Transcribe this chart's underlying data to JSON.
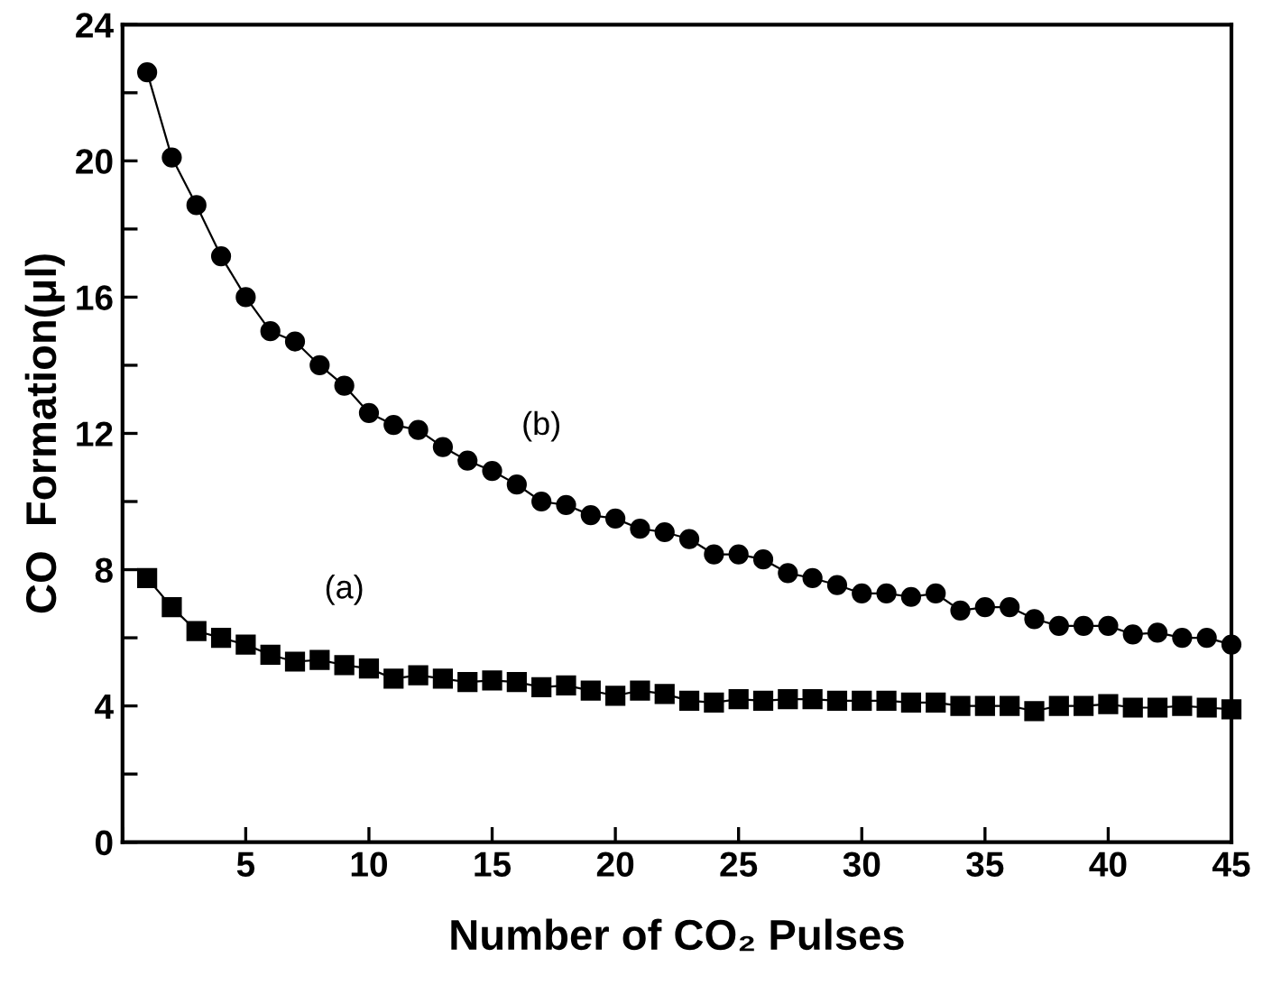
{
  "chart_data": {
    "type": "line",
    "xlabel": "Number of CO₂ Pulses",
    "ylabel": "CO  Formation(μl)",
    "x": [
      1,
      2,
      3,
      4,
      5,
      6,
      7,
      8,
      9,
      10,
      11,
      12,
      13,
      14,
      15,
      16,
      17,
      18,
      19,
      20,
      21,
      22,
      23,
      24,
      25,
      26,
      27,
      28,
      29,
      30,
      31,
      32,
      33,
      34,
      35,
      36,
      37,
      38,
      39,
      40,
      41,
      42,
      43,
      44,
      45
    ],
    "series": [
      {
        "name": "(a)",
        "color": "#000000",
        "marker": "square",
        "values": [
          7.75,
          6.9,
          6.2,
          6.0,
          5.8,
          5.5,
          5.3,
          5.35,
          5.2,
          5.1,
          4.8,
          4.9,
          4.8,
          4.7,
          4.75,
          4.7,
          4.55,
          4.6,
          4.45,
          4.3,
          4.45,
          4.35,
          4.15,
          4.1,
          4.2,
          4.15,
          4.2,
          4.2,
          4.15,
          4.15,
          4.15,
          4.1,
          4.1,
          4.0,
          4.0,
          4.0,
          3.85,
          4.0,
          4.0,
          4.05,
          3.95,
          3.95,
          4.0,
          3.95,
          3.9
        ]
      },
      {
        "name": "(b)",
        "color": "#000000",
        "marker": "circle",
        "values": [
          22.6,
          20.1,
          18.7,
          17.2,
          16.0,
          15.0,
          14.7,
          14.0,
          13.4,
          12.6,
          12.25,
          12.1,
          11.6,
          11.2,
          10.9,
          10.5,
          10.0,
          9.9,
          9.6,
          9.5,
          9.2,
          9.1,
          8.9,
          8.45,
          8.45,
          8.3,
          7.9,
          7.75,
          7.55,
          7.3,
          7.3,
          7.2,
          7.3,
          6.8,
          6.9,
          6.9,
          6.55,
          6.35,
          6.35,
          6.35,
          6.1,
          6.15,
          6.0,
          6.0,
          5.8
        ]
      }
    ],
    "xlim": [
      0,
      45
    ],
    "xticks": [
      {
        "value": 0,
        "label": null
      },
      5,
      10,
      15,
      20,
      25,
      30,
      35,
      40,
      45
    ],
    "ylim": [
      0,
      24
    ],
    "yticks": [
      0,
      {
        "value": 2,
        "label": null
      },
      4,
      {
        "value": 6,
        "label": null
      },
      8,
      {
        "value": 10,
        "label": null
      },
      12,
      {
        "value": 14,
        "label": null
      },
      16,
      {
        "value": 18,
        "label": null
      },
      20,
      {
        "value": 22,
        "label": null
      },
      24
    ],
    "grid": false,
    "legend": false,
    "line_style": "solid"
  }
}
